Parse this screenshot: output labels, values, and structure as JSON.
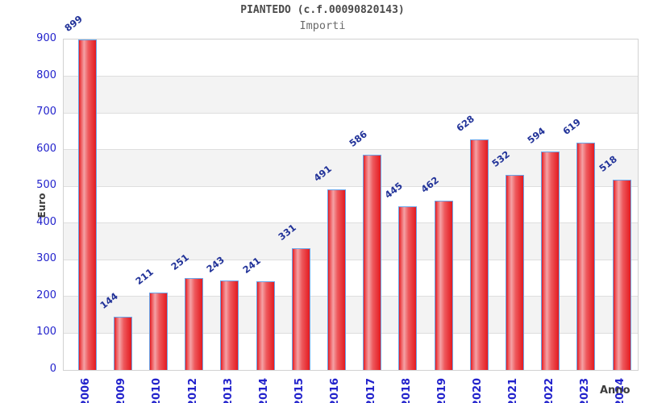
{
  "chart_data": {
    "type": "bar",
    "title": "PIANTEDO (c.f.00090820143)",
    "subtitle": "Importi",
    "xlabel": "Anno",
    "ylabel": "Euro",
    "categories": [
      "2006",
      "2009",
      "2010",
      "2012",
      "2013",
      "2014",
      "2015",
      "2016",
      "2017",
      "2018",
      "2019",
      "2020",
      "2021",
      "2022",
      "2023",
      "2024"
    ],
    "values": [
      899,
      144,
      211,
      251,
      243,
      241,
      331,
      491,
      586,
      445,
      462,
      628,
      532,
      594,
      619,
      518
    ],
    "ylim": [
      0,
      900
    ],
    "yticks": [
      0,
      100,
      200,
      300,
      400,
      500,
      600,
      700,
      800,
      900
    ],
    "grid": true,
    "alternating_bands": true,
    "legend_position": "none"
  },
  "colors": {
    "bar_fill": "#e31b20",
    "bar_mid": "#ee585c",
    "bar_highlight": "#f4a2a5",
    "bar_border": "#6aa4e8",
    "axis_tick_label": "#2222cc",
    "value_label": "#223399",
    "title": "#4a4a4a",
    "subtitle": "#6b6b6b",
    "axis_title": "#3c3c3c",
    "gridline": "#dedede",
    "band": "#f3f3f3",
    "plot_border": "#d2d2d2",
    "background": "#ffffff"
  }
}
